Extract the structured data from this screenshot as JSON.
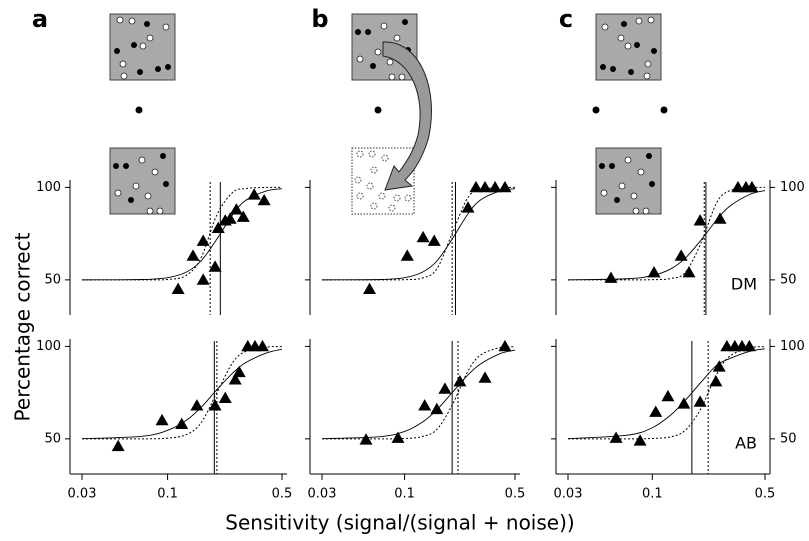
{
  "panel_labels": [
    "a",
    "b",
    "c"
  ],
  "ylabel": "Percentage correct",
  "xlabel": "Sensitivity (signal/(signal + noise))",
  "chart_data": [
    {
      "type": "scatter",
      "xscale": "log",
      "xlim": [
        0.03,
        0.5
      ],
      "ylim": [
        31,
        104
      ],
      "yticks": [
        50,
        100
      ],
      "ytick_side": "left",
      "marker": "triangle",
      "color": "#000000",
      "x": [
        0.116,
        0.143,
        0.165,
        0.165,
        0.195,
        0.204,
        0.225,
        0.241,
        0.263,
        0.29,
        0.338,
        0.389
      ],
      "values": [
        45,
        63,
        71,
        50,
        57,
        78,
        82,
        83,
        88,
        84,
        96,
        93
      ],
      "fits": [
        {
          "style": "solid",
          "x": [
            0.03,
            0.07,
            0.1,
            0.13,
            0.16,
            0.2,
            0.25,
            0.3,
            0.4,
            0.5
          ],
          "values": [
            50.0,
            50.2,
            51.2,
            54.2,
            60.2,
            72.0,
            85.3,
            93.0,
            98.0,
            99.3
          ]
        },
        {
          "style": "dotted",
          "x": [
            0.03,
            0.07,
            0.1,
            0.13,
            0.16,
            0.2,
            0.25,
            0.3,
            0.4,
            0.5
          ],
          "values": [
            50,
            50,
            50.2,
            52.4,
            61.9,
            85.1,
            97.3,
            99.4,
            100,
            100
          ]
        }
      ],
      "thresholds": [
        {
          "style": "solid",
          "value": 0.21
        },
        {
          "style": "dotted",
          "value": 0.182
        }
      ]
    },
    {
      "type": "scatter",
      "xscale": "log",
      "xlim": [
        0.03,
        0.5
      ],
      "ylim": [
        31,
        104
      ],
      "yticks": [
        50,
        100
      ],
      "ytick_side": "none",
      "marker": "triangle",
      "color": "#000000",
      "x": [
        0.06,
        0.104,
        0.131,
        0.154,
        0.252,
        0.283,
        0.323,
        0.374,
        0.432
      ],
      "values": [
        45,
        63,
        73,
        71,
        89,
        100,
        100,
        100,
        100
      ],
      "fits": [
        {
          "style": "solid",
          "x": [
            0.03,
            0.07,
            0.1,
            0.13,
            0.16,
            0.2,
            0.25,
            0.3,
            0.4,
            0.5
          ],
          "values": [
            50.0,
            50.2,
            51.2,
            54.2,
            60.2,
            72.0,
            85.3,
            93.0,
            98.0,
            99.3
          ]
        },
        {
          "style": "dotted",
          "x": [
            0.03,
            0.07,
            0.1,
            0.13,
            0.16,
            0.2,
            0.25,
            0.3,
            0.4,
            0.5
          ],
          "values": [
            50,
            50,
            50.1,
            51,
            55.9,
            75,
            94.1,
            98.7,
            99.9,
            100
          ]
        }
      ],
      "thresholds": [
        {
          "style": "solid",
          "value": 0.21
        },
        {
          "style": "dotted",
          "value": 0.2
        }
      ]
    },
    {
      "type": "scatter",
      "xscale": "log",
      "xlim": [
        0.03,
        0.5
      ],
      "ylim": [
        31,
        104
      ],
      "yticks": [
        50,
        100
      ],
      "ytick_side": "right",
      "label": "DM",
      "marker": "triangle",
      "color": "#000000",
      "x": [
        0.0554,
        0.1025,
        0.151,
        0.169,
        0.198,
        0.263,
        0.34,
        0.381,
        0.415
      ],
      "values": [
        51,
        54,
        63,
        54,
        82,
        83,
        100,
        100,
        100
      ],
      "fits": [
        {
          "style": "solid",
          "x": [
            0.03,
            0.07,
            0.1,
            0.13,
            0.16,
            0.2,
            0.25,
            0.3,
            0.4,
            0.5
          ],
          "values": [
            50,
            50.6,
            52.3,
            55.9,
            61.7,
            71.4,
            82.3,
            89.6,
            96.1,
            98.3
          ]
        },
        {
          "style": "dotted",
          "x": [
            0.03,
            0.07,
            0.1,
            0.13,
            0.16,
            0.2,
            0.25,
            0.3,
            0.4,
            0.5
          ],
          "values": [
            50,
            50,
            50.1,
            50.7,
            54,
            69.7,
            91.5,
            98.1,
            99.8,
            100
          ]
        }
      ],
      "thresholds": [
        {
          "style": "solid",
          "value": 0.215
        },
        {
          "style": "dotted",
          "value": 0.21
        }
      ]
    },
    {
      "type": "scatter",
      "xscale": "log",
      "xlim": [
        0.03,
        0.5
      ],
      "ylim": [
        31,
        104
      ],
      "xticks": [
        0.03,
        0.1,
        0.5
      ],
      "yticks": [
        50,
        100
      ],
      "ytick_side": "left",
      "marker": "triangle",
      "color": "#000000",
      "x": [
        0.0499,
        0.0925,
        0.122,
        0.151,
        0.195,
        0.225,
        0.259,
        0.274,
        0.309,
        0.342,
        0.38
      ],
      "values": [
        46,
        60,
        58,
        68,
        68,
        72,
        82,
        86,
        100,
        100,
        100
      ],
      "fits": [
        {
          "style": "solid",
          "x": [
            0.03,
            0.07,
            0.1,
            0.13,
            0.16,
            0.2,
            0.25,
            0.3,
            0.4,
            0.5
          ],
          "values": [
            50.1,
            51.4,
            54.6,
            60,
            67,
            76.6,
            85.6,
            91.2,
            96.4,
            98.5
          ]
        },
        {
          "style": "dotted",
          "x": [
            0.03,
            0.07,
            0.1,
            0.13,
            0.16,
            0.2,
            0.25,
            0.3,
            0.4,
            0.5
          ],
          "values": [
            50,
            50,
            50.4,
            52.3,
            58.6,
            75,
            91.3,
            97.3,
            99.6,
            99.9
          ]
        }
      ],
      "thresholds": [
        {
          "style": "solid",
          "value": 0.193
        },
        {
          "style": "dotted",
          "value": 0.2
        }
      ]
    },
    {
      "type": "scatter",
      "xscale": "log",
      "xlim": [
        0.03,
        0.5
      ],
      "ylim": [
        31,
        104
      ],
      "xticks": [
        0.03,
        0.1,
        0.5
      ],
      "yticks": [
        50,
        100
      ],
      "ytick_side": "none",
      "marker": "triangle",
      "color": "#000000",
      "x": [
        0.057,
        0.0908,
        0.134,
        0.16,
        0.18,
        0.224,
        0.323,
        0.432
      ],
      "values": [
        49.5,
        50.5,
        68,
        66,
        77,
        81,
        83,
        100
      ],
      "fits": [
        {
          "style": "solid",
          "x": [
            0.03,
            0.07,
            0.1,
            0.13,
            0.16,
            0.2,
            0.25,
            0.3,
            0.4,
            0.5
          ],
          "values": [
            50.1,
            51.2,
            54,
            59.1,
            65.7,
            75,
            84.3,
            90.3,
            96,
            98
          ]
        },
        {
          "style": "dotted",
          "x": [
            0.03,
            0.07,
            0.1,
            0.13,
            0.16,
            0.2,
            0.25,
            0.3,
            0.4,
            0.5
          ],
          "values": [
            50,
            50,
            50.2,
            51.3,
            55.1,
            68.2,
            86.1,
            95.1,
            99.3,
            99.8
          ]
        }
      ],
      "thresholds": [
        {
          "style": "solid",
          "value": 0.2
        },
        {
          "style": "dotted",
          "value": 0.218
        }
      ]
    },
    {
      "type": "scatter",
      "xscale": "log",
      "xlim": [
        0.03,
        0.5
      ],
      "ylim": [
        31,
        104
      ],
      "xticks": [
        0.03,
        0.1,
        0.5
      ],
      "yticks": [
        50,
        100
      ],
      "ytick_side": "right",
      "label": "AB",
      "marker": "triangle",
      "color": "#000000",
      "x": [
        0.0596,
        0.084,
        0.105,
        0.125,
        0.157,
        0.198,
        0.248,
        0.26,
        0.29,
        0.325,
        0.36,
        0.4
      ],
      "values": [
        50.5,
        49,
        64.5,
        73,
        69,
        70,
        81,
        89,
        100,
        100,
        100,
        100
      ],
      "fits": [
        {
          "style": "solid",
          "x": [
            0.03,
            0.07,
            0.1,
            0.13,
            0.16,
            0.2,
            0.25,
            0.3,
            0.4,
            0.5
          ],
          "values": [
            50.1,
            52,
            56,
            62.9,
            70.8,
            80.5,
            89.7,
            93.3,
            97.3,
            98.7
          ]
        },
        {
          "style": "dotted",
          "x": [
            0.03,
            0.07,
            0.1,
            0.13,
            0.16,
            0.2,
            0.25,
            0.3,
            0.4,
            0.5
          ],
          "values": [
            50,
            50,
            50.2,
            51.1,
            54.6,
            66.3,
            84.8,
            94.5,
            99.2,
            99.8
          ]
        }
      ],
      "thresholds": [
        {
          "style": "solid",
          "value": 0.176
        },
        {
          "style": "dotted",
          "value": 0.222
        }
      ]
    }
  ]
}
